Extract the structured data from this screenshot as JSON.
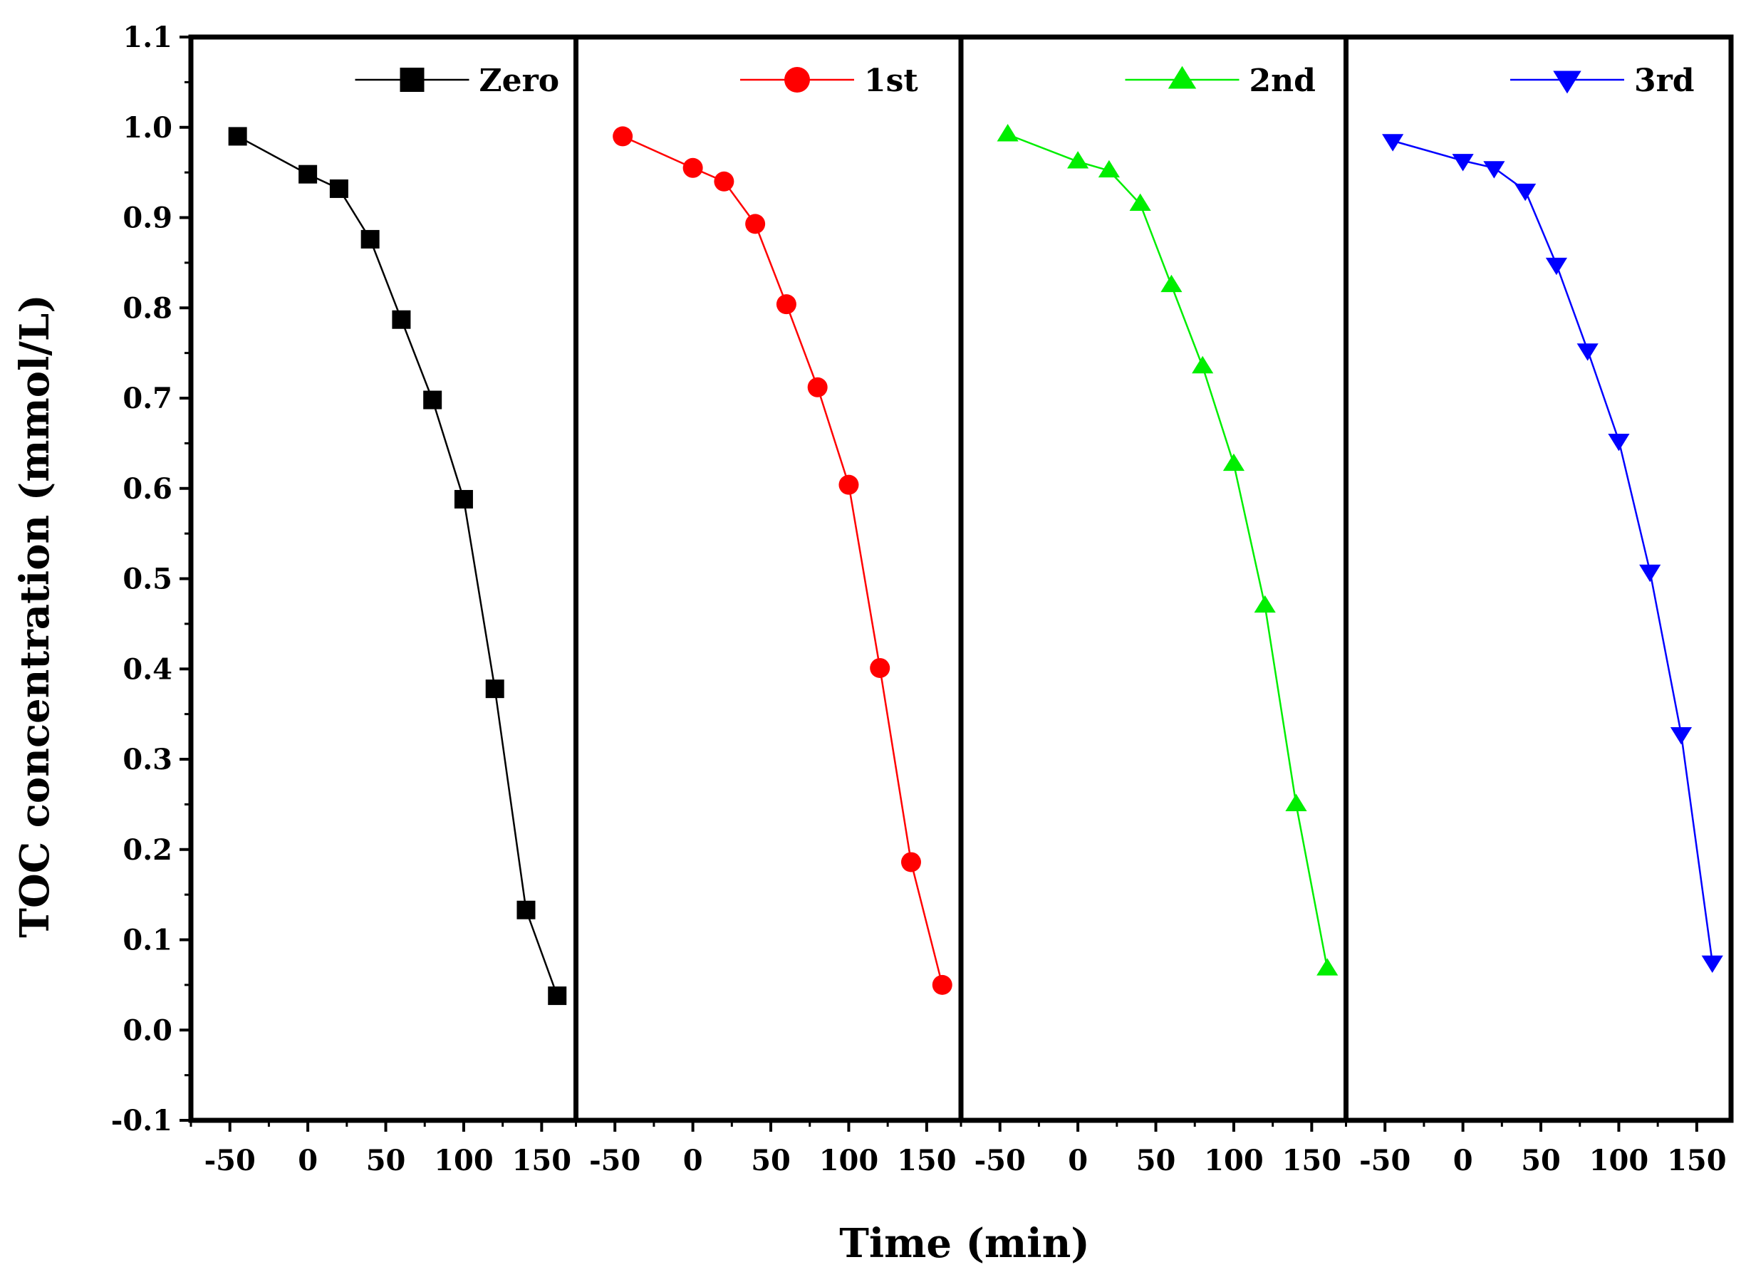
{
  "chart_data": {
    "type": "line",
    "layout": "four adjacent panels sharing one y-axis",
    "title": "",
    "xlabel": "Time (min)",
    "ylabel": "TOC concentration (mmol/L)",
    "ylim": [
      -0.1,
      1.1
    ],
    "xlim": [
      -75,
      172
    ],
    "y_ticks": [
      "-0.1",
      "0.0",
      "0.1",
      "0.2",
      "0.3",
      "0.4",
      "0.5",
      "0.6",
      "0.7",
      "0.8",
      "0.9",
      "1.0",
      "1.1"
    ],
    "x_ticks": [
      "-50",
      "0",
      "50",
      "100",
      "150"
    ],
    "x": [
      -45,
      0,
      20,
      40,
      60,
      80,
      100,
      120,
      140,
      160
    ],
    "series": [
      {
        "name": "Zero",
        "color": "#000000",
        "marker": "square",
        "values": [
          0.99,
          0.948,
          0.932,
          0.876,
          0.787,
          0.698,
          0.588,
          0.378,
          0.133,
          0.038
        ]
      },
      {
        "name": "1st",
        "color": "#ff0000",
        "marker": "circle",
        "values": [
          0.99,
          0.955,
          0.94,
          0.893,
          0.804,
          0.712,
          0.604,
          0.401,
          0.186,
          0.05
        ]
      },
      {
        "name": "2nd",
        "color": "#00ee00",
        "marker": "triangle-up",
        "values": [
          0.992,
          0.962,
          0.952,
          0.915,
          0.825,
          0.735,
          0.627,
          0.47,
          0.25,
          0.068
        ]
      },
      {
        "name": "3rd",
        "color": "#0000ff",
        "marker": "triangle-down",
        "values": [
          0.985,
          0.963,
          0.955,
          0.93,
          0.848,
          0.753,
          0.653,
          0.508,
          0.328,
          0.075
        ]
      }
    ]
  }
}
